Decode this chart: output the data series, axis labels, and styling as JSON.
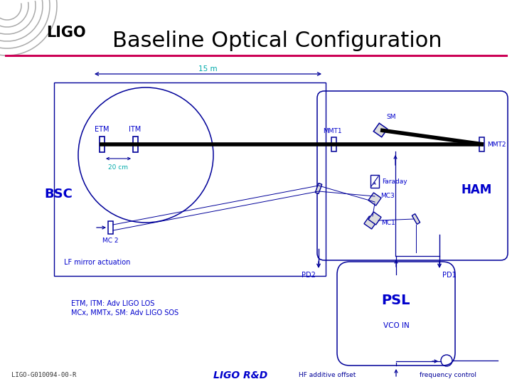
{
  "title": "Baseline Optical Configuration",
  "title_fontsize": 22,
  "background_color": "#ffffff",
  "accent_line_color": "#cc0055",
  "diagram_color": "#000099",
  "blue_text_color": "#0000cc",
  "cyan_text_color": "#00aaaa",
  "footer_left": "LIGO-G010094-00-R",
  "footer_center": "LIGO R&D",
  "dim_label": "15 m",
  "bsc_label": "BSC",
  "ham_label": "HAM",
  "psl_label": "PSL",
  "vco_label": "VCO IN",
  "lf_label": "LF mirror actuation",
  "note_line1": "ETM, ITM: Adv LIGO LOS",
  "note_line2": "MCx, MMTx, SM: Adv LIGO SOS",
  "spacing_label": "20 cm",
  "etm_label": "ETM",
  "itm_label": "ITM",
  "mmt1_label": "MMT1",
  "mmt2_label": "MMT2",
  "sm_label": "SM",
  "faraday_label": "Faraday",
  "mc1_label": "MC1",
  "mc2_label": "MC 2",
  "mc3_label": "MC3",
  "pd1_label": "PD1",
  "pd2_label": "PD2",
  "hf_label": "HF additive offset",
  "freq_label": "frequency control"
}
